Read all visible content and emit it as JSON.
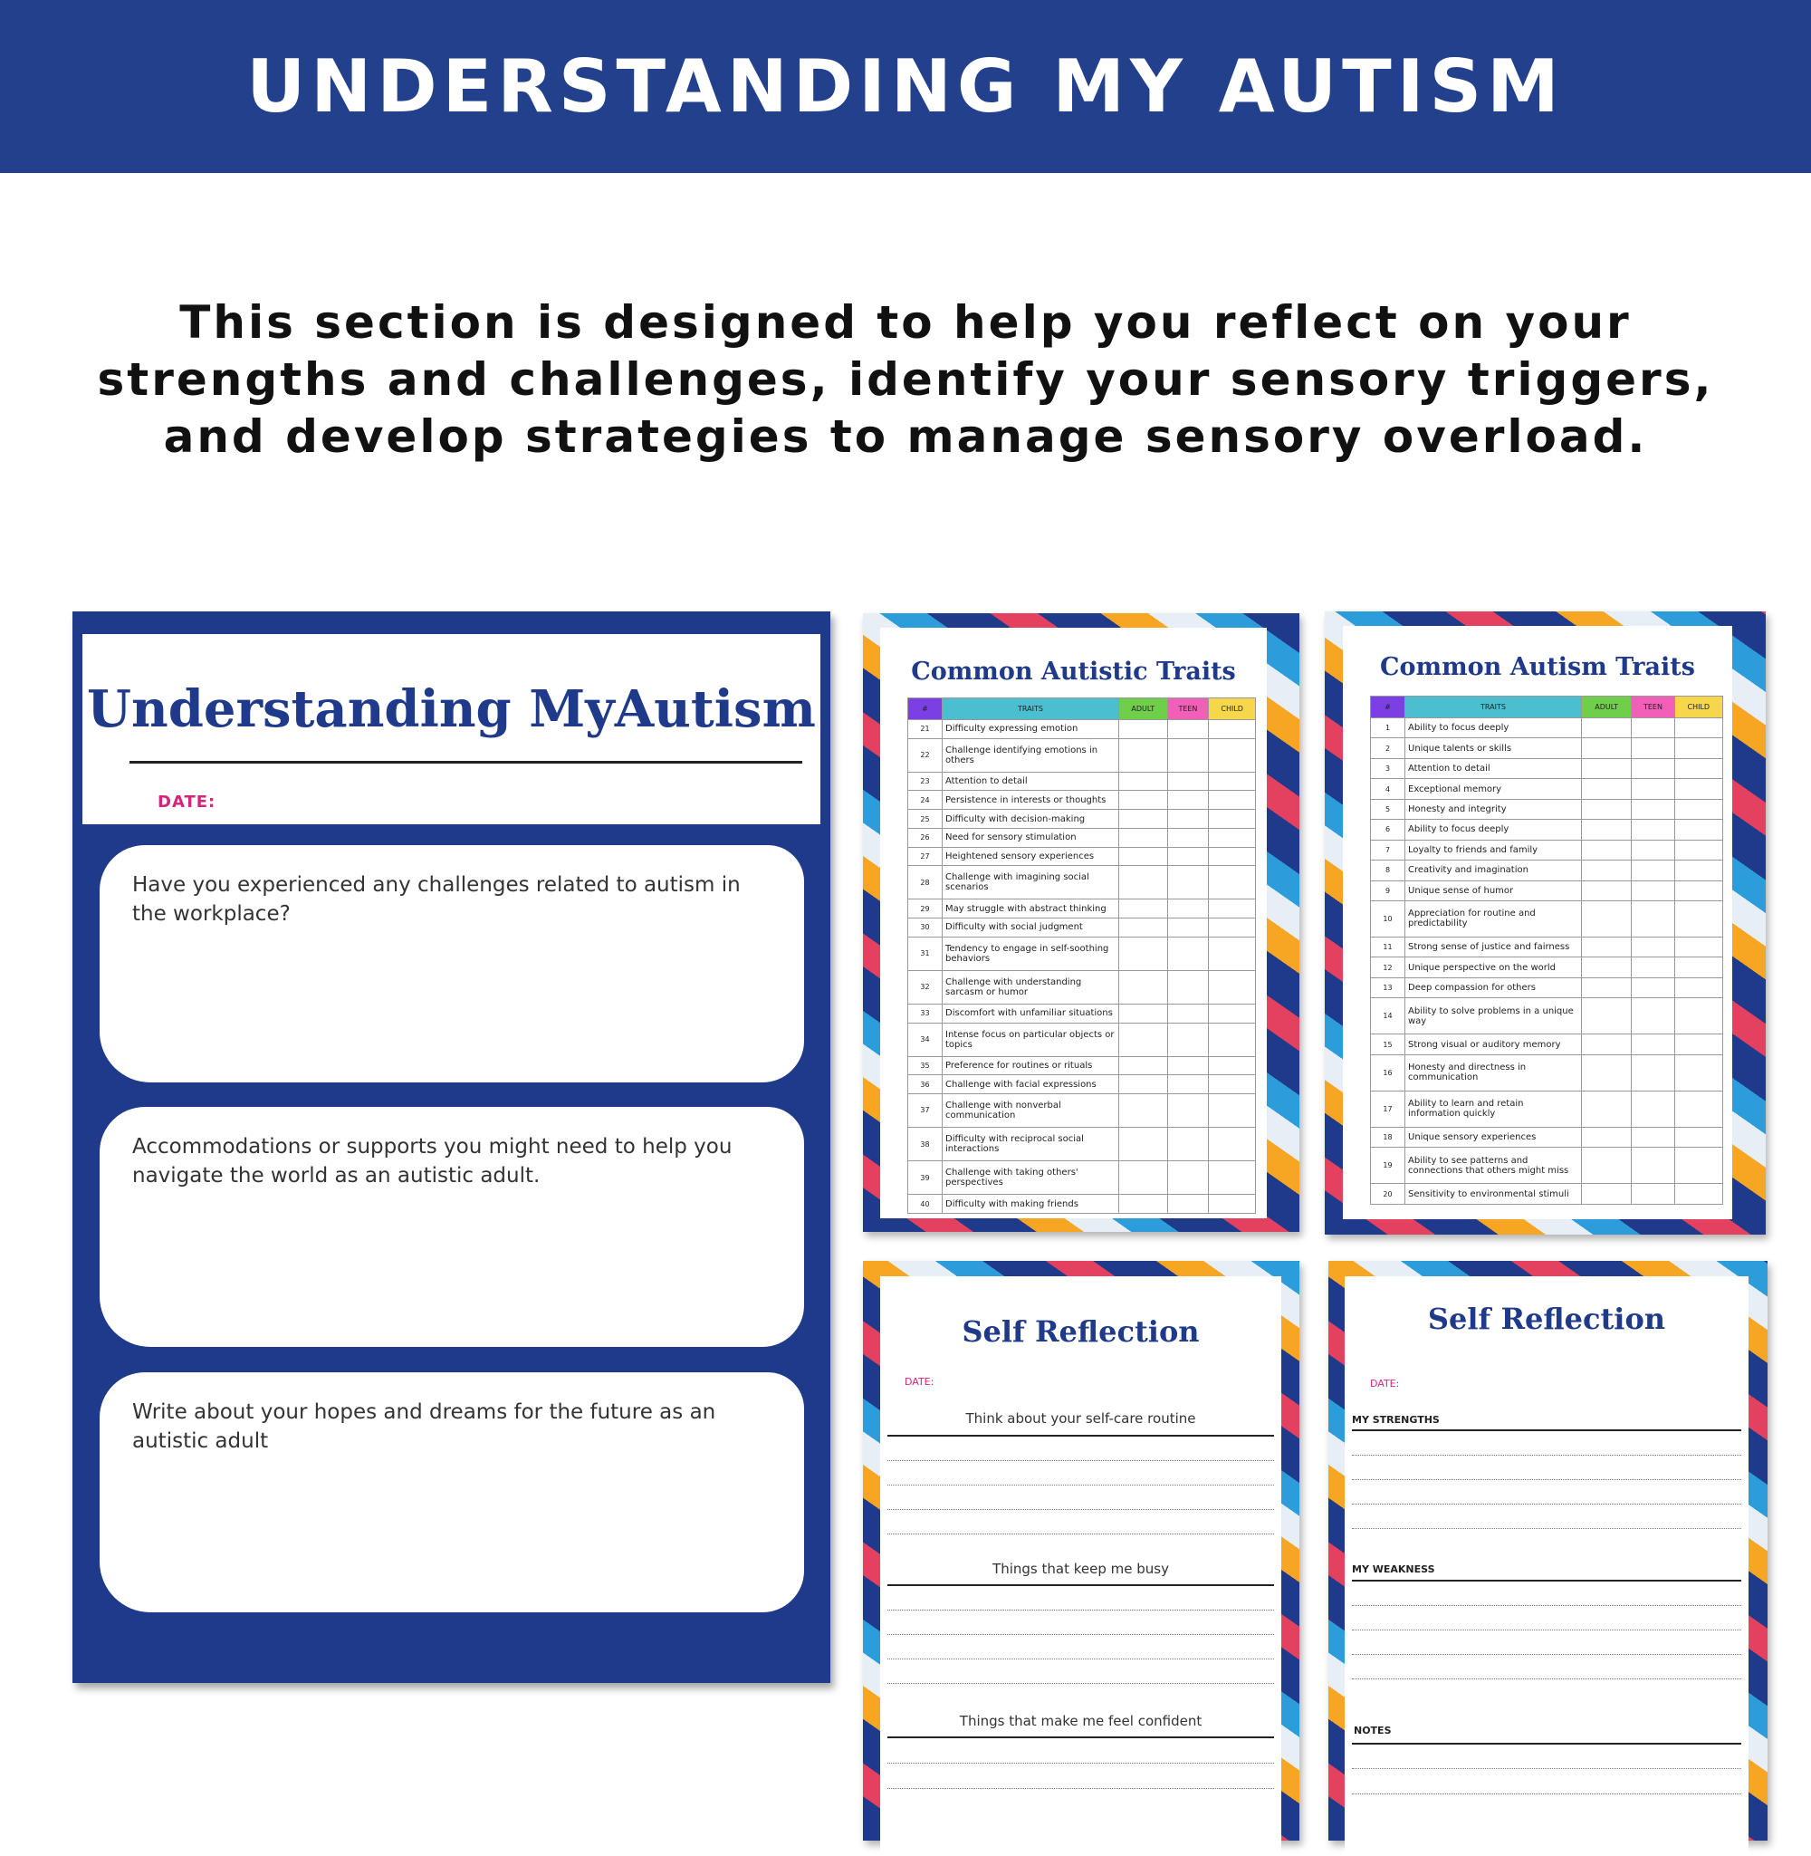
{
  "header": {
    "title": "UNDERSTANDING MY AUTISM"
  },
  "intro": {
    "lines": [
      "This section is designed to help you reflect on your",
      "strengths and challenges, identify your sensory triggers,",
      "and develop strategies to manage sensory overload."
    ]
  },
  "worksheet": {
    "title": "Understanding MyAutism",
    "date_label": "DATE:",
    "questions": [
      "Have you experienced any challenges related to autism in the workplace?",
      "Accommodations or supports you might need to help you navigate the world as an autistic adult.",
      "Write about your hopes and dreams for the future as an autistic adult"
    ]
  },
  "colors": {
    "brand": "#22408c",
    "num": "#7b3fe4",
    "traits": "#4bbfcf",
    "adult": "#6fcf4a",
    "teen": "#f25fb8",
    "child": "#f6d64a",
    "date": "#d6247a"
  },
  "table_headers": [
    "#",
    "TRAITS",
    "ADULT",
    "TEEN",
    "CHILD"
  ],
  "traits_page_2": {
    "title": "Common Autistic Traits",
    "rows": [
      [
        "21",
        "Difficulty expressing emotion"
      ],
      [
        "22",
        "Challenge identifying emotions in others"
      ],
      [
        "23",
        "Attention to detail"
      ],
      [
        "24",
        "Persistence in interests or thoughts"
      ],
      [
        "25",
        "Difficulty with decision-making"
      ],
      [
        "26",
        "Need for sensory stimulation"
      ],
      [
        "27",
        "Heightened sensory experiences"
      ],
      [
        "28",
        "Challenge with imagining social scenarios"
      ],
      [
        "29",
        "May struggle with abstract thinking"
      ],
      [
        "30",
        "Difficulty with social judgment"
      ],
      [
        "31",
        "Tendency to engage in self-soothing behaviors"
      ],
      [
        "32",
        "Challenge with understanding sarcasm or humor"
      ],
      [
        "33",
        "Discomfort with unfamiliar situations"
      ],
      [
        "34",
        "Intense focus on particular objects or topics"
      ],
      [
        "35",
        "Preference for routines or rituals"
      ],
      [
        "36",
        "Challenge with facial expressions"
      ],
      [
        "37",
        "Challenge with nonverbal communication"
      ],
      [
        "38",
        "Difficulty with reciprocal social interactions"
      ],
      [
        "39",
        "Challenge with taking others' perspectives"
      ],
      [
        "40",
        "Difficulty with making friends"
      ]
    ]
  },
  "traits_page_1": {
    "title": "Common Autism Traits",
    "rows": [
      [
        "1",
        "Ability to focus deeply"
      ],
      [
        "2",
        "Unique talents or skills"
      ],
      [
        "3",
        "Attention to detail"
      ],
      [
        "4",
        "Exceptional memory"
      ],
      [
        "5",
        "Honesty and integrity"
      ],
      [
        "6",
        "Ability to focus deeply"
      ],
      [
        "7",
        "Loyalty to friends and family"
      ],
      [
        "8",
        "Creativity and imagination"
      ],
      [
        "9",
        "Unique sense of humor"
      ],
      [
        "10",
        "Appreciation for routine and predictability"
      ],
      [
        "11",
        "Strong sense of justice and fairness"
      ],
      [
        "12",
        "Unique perspective on the world"
      ],
      [
        "13",
        "Deep compassion for others"
      ],
      [
        "14",
        "Ability to solve problems in a unique way"
      ],
      [
        "15",
        "Strong visual or auditory memory"
      ],
      [
        "16",
        "Honesty and directness in communication"
      ],
      [
        "17",
        "Ability to learn and retain information quickly"
      ],
      [
        "18",
        "Unique sensory experiences"
      ],
      [
        "19",
        "Ability to see patterns and connections that others might miss"
      ],
      [
        "20",
        "Sensitivity to environmental stimuli"
      ]
    ]
  },
  "reflection_a": {
    "title": "Self Reflection",
    "date_label": "DATE:",
    "prompts": [
      "Think about your self-care routine",
      "Things that keep me busy",
      "Things that make me feel confident"
    ]
  },
  "reflection_b": {
    "title": "Self Reflection",
    "date_label": "DATE:",
    "sections": [
      "MY STRENGTHS",
      "MY WEAKNESS",
      "NOTES"
    ]
  }
}
